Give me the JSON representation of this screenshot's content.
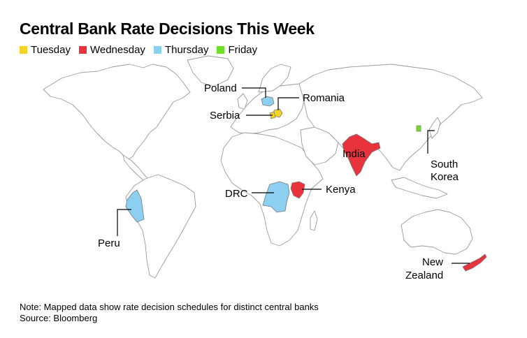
{
  "title": "Central Bank Rate Decisions This Week",
  "legend": [
    {
      "label": "Tuesday",
      "color": "#f5d327"
    },
    {
      "label": "Wednesday",
      "color": "#e8323c"
    },
    {
      "label": "Thursday",
      "color": "#8ccff0"
    },
    {
      "label": "Friday",
      "color": "#6ee02a"
    }
  ],
  "labels": {
    "poland": "Poland",
    "romania": "Romania",
    "serbia": "Serbia",
    "india": "India",
    "south_korea_1": "South",
    "south_korea_2": "Korea",
    "kenya": "Kenya",
    "drc": "DRC",
    "peru": "Peru",
    "new_zealand_1": "New",
    "new_zealand_2": "Zealand"
  },
  "map_colors": {
    "land_fill": "#ffffff",
    "border": "#9a9a9a",
    "tuesday": "#f5d327",
    "wednesday": "#e8323c",
    "thursday": "#8ccff0",
    "friday": "#6ee02a"
  },
  "footer": {
    "note": "Note: Mapped data show rate decision schedules for distinct central banks",
    "source": "Source: Bloomberg"
  }
}
